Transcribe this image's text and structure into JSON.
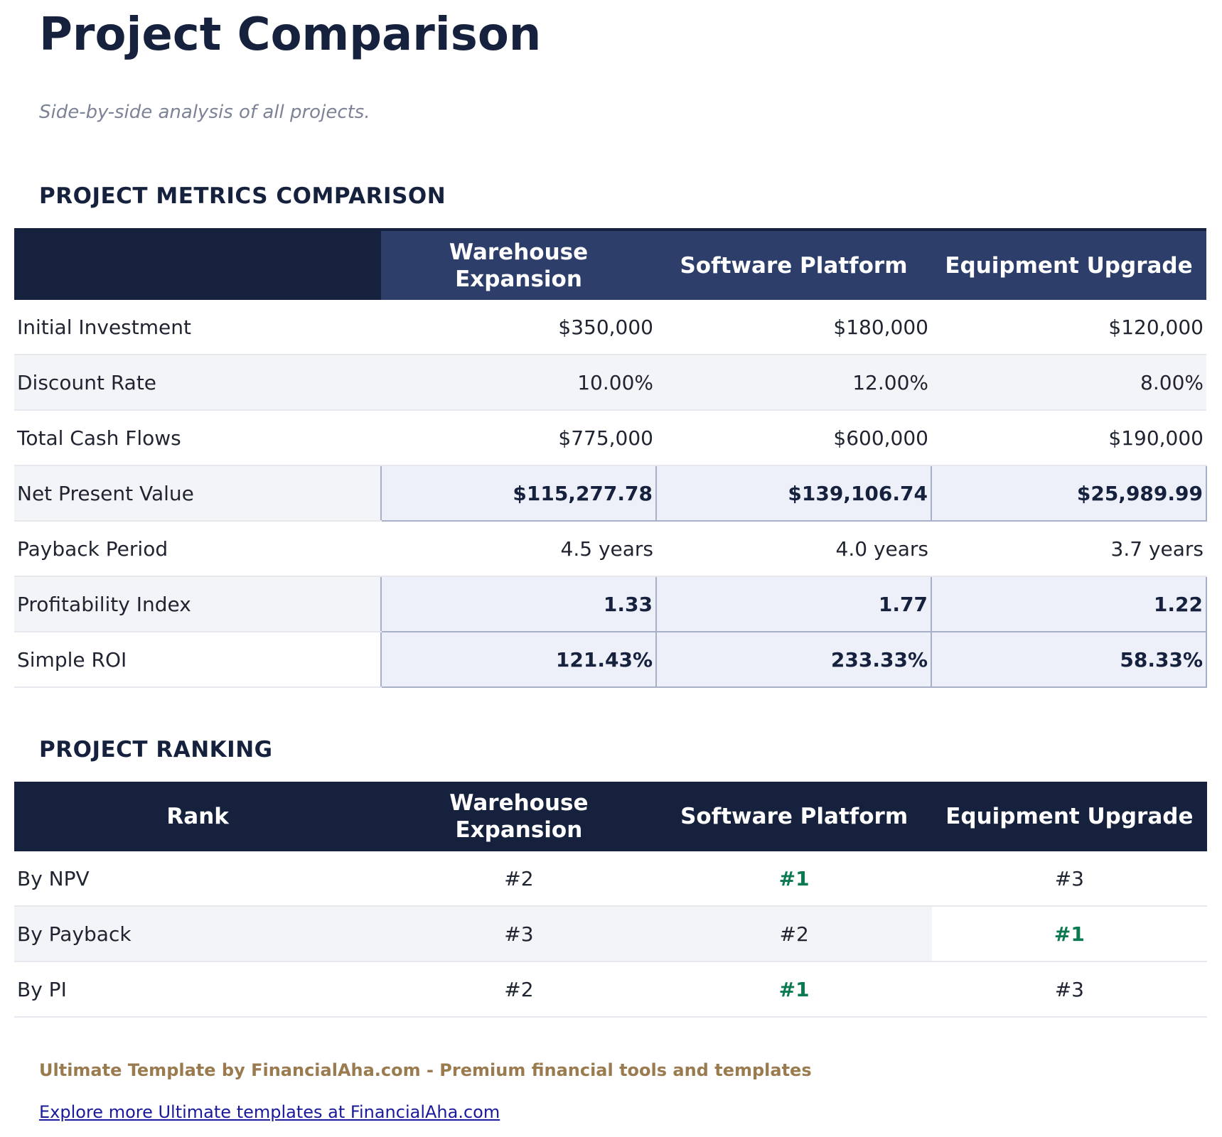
{
  "title": "Project Comparison",
  "subtitle": "Side-by-side analysis of all projects.",
  "metrics": {
    "heading": "PROJECT METRICS COMPARISON",
    "columns": [
      "",
      "Warehouse Expansion",
      "Software Platform",
      "Equipment Upgrade"
    ],
    "rows": [
      {
        "label": "Initial Investment",
        "values": [
          "$350,000",
          "$180,000",
          "$120,000"
        ],
        "highlight": false
      },
      {
        "label": "Discount Rate",
        "values": [
          "10.00%",
          "12.00%",
          "8.00%"
        ],
        "highlight": false
      },
      {
        "label": "Total Cash Flows",
        "values": [
          "$775,000",
          "$600,000",
          "$190,000"
        ],
        "highlight": false
      },
      {
        "label": "Net Present Value",
        "values": [
          "$115,277.78",
          "$139,106.74",
          "$25,989.99"
        ],
        "highlight": true
      },
      {
        "label": "Payback Period",
        "values": [
          "4.5 years",
          "4.0 years",
          "3.7 years"
        ],
        "highlight": false
      },
      {
        "label": "Profitability Index",
        "values": [
          "1.33",
          "1.77",
          "1.22"
        ],
        "highlight": true
      },
      {
        "label": "Simple ROI",
        "values": [
          "121.43%",
          "233.33%",
          "58.33%"
        ],
        "highlight": true
      }
    ]
  },
  "ranking": {
    "heading": "PROJECT RANKING",
    "columns": [
      "Rank",
      "Warehouse Expansion",
      "Software Platform",
      "Equipment Upgrade"
    ],
    "rows": [
      {
        "label": "By NPV",
        "values": [
          "#2",
          "#1",
          "#3"
        ],
        "best": 1
      },
      {
        "label": "By Payback",
        "values": [
          "#3",
          "#2",
          "#1"
        ],
        "best": 2
      },
      {
        "label": "By PI",
        "values": [
          "#2",
          "#1",
          "#3"
        ],
        "best": 1
      }
    ]
  },
  "colors": {
    "header_dark": "#15213d",
    "header_project": "#2d3e6b",
    "best_rank": "#0b7a50",
    "footer": "#9a7b4f",
    "link": "#1a1a9c"
  },
  "footer": {
    "text": "Ultimate Template by FinancialAha.com - Premium financial tools and templates",
    "link": "Explore more Ultimate templates at FinancialAha.com"
  }
}
